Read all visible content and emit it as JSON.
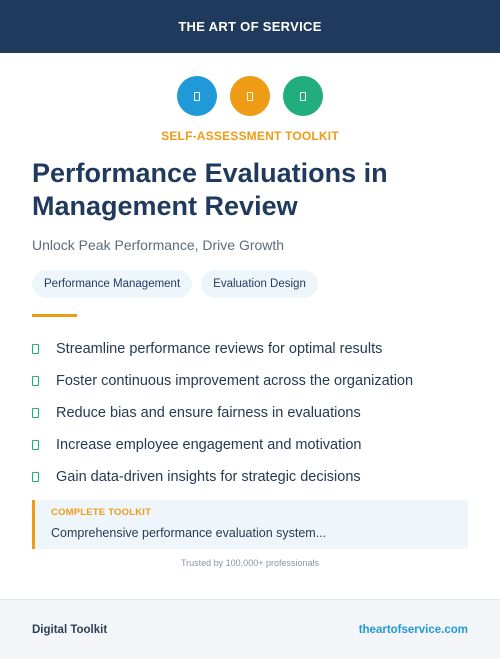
{
  "header": {
    "brand": "THE ART OF SERVICE"
  },
  "icons": [
    {
      "name": "document-icon",
      "color": "#1f9ad6"
    },
    {
      "name": "document-icon",
      "color": "#ee9b16"
    },
    {
      "name": "document-icon",
      "color": "#1fae7c"
    }
  ],
  "kicker": "SELF-ASSESSMENT TOOLKIT",
  "title": "Performance Evaluations in Management Review",
  "subtitle": "Unlock Peak Performance, Drive Growth",
  "tags": [
    "Performance Management",
    "Evaluation Design"
  ],
  "benefits": [
    "Streamline performance reviews for optimal results",
    "Foster continuous improvement across the organization",
    "Reduce bias and ensure fairness in evaluations",
    "Increase employee engagement and motivation",
    "Gain data-driven insights for strategic decisions"
  ],
  "callout": {
    "label": "COMPLETE TOOLKIT",
    "description": "Comprehensive performance evaluation system..."
  },
  "trust": "Trusted by 100,000+ professionals",
  "footer": {
    "left": "Digital Toolkit",
    "right": "theartofservice.com"
  },
  "colors": {
    "navy": "#1f3a5c",
    "accent_orange": "#ee9b16",
    "blue": "#1f9ad6",
    "green": "#1fae7c"
  }
}
